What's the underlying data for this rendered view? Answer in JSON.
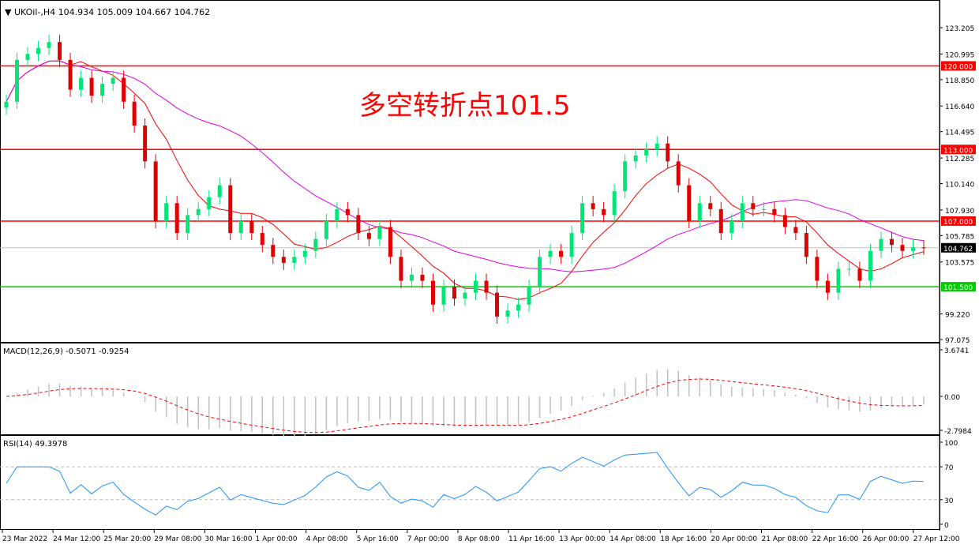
{
  "header": {
    "symbol": "UKOil-,H4",
    "ohlc": "104.934 105.009 104.667 104.762"
  },
  "annotation": "多空转折点101.5",
  "colors": {
    "bull": "#00e676",
    "bear": "#e00000",
    "ma_fast": "#ff0000",
    "ma_slow": "#e000e0",
    "level_red": "#ff0000",
    "level_green": "#00cc00",
    "rsi": "#1e90ff",
    "macd_hist": "#c0c0c0",
    "macd_signal": "#ff0000"
  },
  "chart_data": {
    "type": "candlestick",
    "price_axis": {
      "min": 97.075,
      "max": 123.205,
      "ticks": [
        "123.205",
        "120.995",
        "118.850",
        "116.640",
        "114.495",
        "112.285",
        "110.140",
        "107.930",
        "105.785",
        "103.575",
        "99.220",
        "97.075"
      ]
    },
    "levels": [
      {
        "value": 120.0,
        "label": "120.000",
        "color": "#ff0000"
      },
      {
        "value": 113.0,
        "label": "113.000",
        "color": "#ff0000"
      },
      {
        "value": 107.0,
        "label": "107.000",
        "color": "#ff0000"
      },
      {
        "value": 101.5,
        "label": "101.500",
        "color": "#00cc00"
      }
    ],
    "current_price": {
      "value": 104.762,
      "label": "104.762"
    },
    "closes": [
      117,
      120.5,
      121,
      121.5,
      122,
      120.5,
      118,
      119,
      117.5,
      118.5,
      119,
      117,
      115,
      112,
      107,
      108.5,
      106,
      107.5,
      108,
      109,
      110,
      106,
      107,
      106,
      105,
      104,
      103.5,
      104,
      104.5,
      105.5,
      107,
      108,
      107.5,
      106,
      105.5,
      106.5,
      104,
      102,
      102.5,
      102,
      100,
      101.5,
      100.5,
      101,
      102,
      101,
      99,
      99.5,
      100,
      101.5,
      104,
      104.5,
      104,
      106,
      108.5,
      108,
      107.5,
      109.5,
      112,
      112.5,
      113,
      113.5,
      112,
      110,
      107,
      108.5,
      108,
      106,
      107,
      108.5,
      108,
      108,
      107.5,
      106.5,
      106,
      104,
      102,
      101,
      103,
      103,
      102,
      104.5,
      105.5,
      105,
      104.5,
      104.8,
      104.762
    ],
    "x_labels": [
      "23 Mar 2022",
      "24 Mar 12:00",
      "25 Mar 20:00",
      "29 Mar 08:00",
      "30 Mar 16:00",
      "1 Apr 00:00",
      "4 Apr 08:00",
      "5 Apr 16:00",
      "7 Apr 00:00",
      "8 Apr 08:00",
      "11 Apr 16:00",
      "13 Apr 00:00",
      "14 Apr 08:00",
      "18 Apr 16:00",
      "20 Apr 00:00",
      "21 Apr 08:00",
      "22 Apr 16:00",
      "26 Apr 00:00",
      "27 Apr 12:00"
    ],
    "macd": {
      "label": "MACD(12,26,9) -0.5071 -0.9254",
      "min": -2.7984,
      "max": 3.6741,
      "ticks": [
        "3.6741",
        "0.00",
        "-2.7984"
      ]
    },
    "rsi": {
      "label": "RSI(14) 49.3978",
      "min": 0,
      "max": 100,
      "ticks": [
        "100",
        "70",
        "30",
        "0"
      ],
      "levels": [
        70,
        30
      ]
    }
  }
}
